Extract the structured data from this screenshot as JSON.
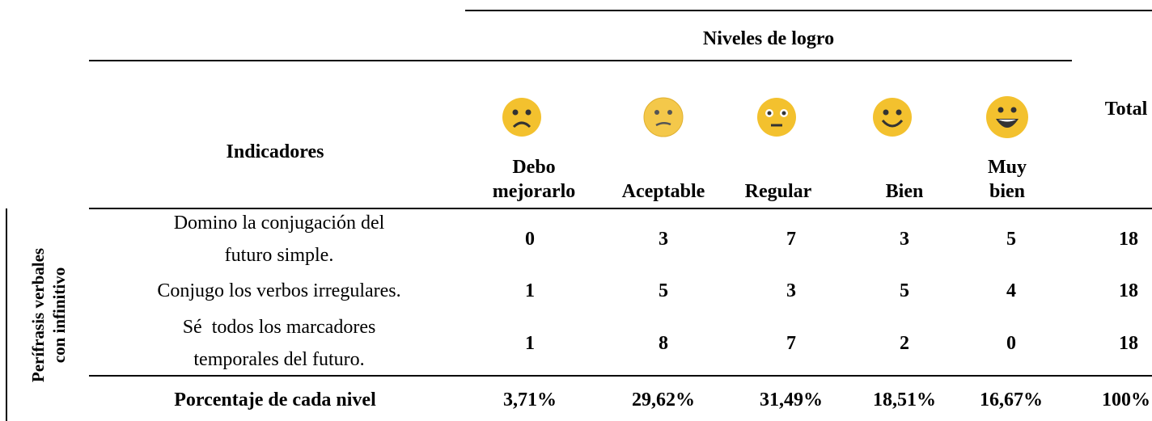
{
  "header": {
    "group": "Niveles de logro",
    "indicators": "Indicadores",
    "total": "Total",
    "levels": [
      [
        "Debo",
        "mejorarlo"
      ],
      [
        "Aceptable"
      ],
      [
        "Regular"
      ],
      [
        "Bien"
      ],
      [
        "Muy",
        "bien"
      ]
    ]
  },
  "side_label": [
    "Perífrasis verbales",
    "con infinitivo"
  ],
  "table": {
    "rows": [
      {
        "indicator": [
          "Domino la conjugación del",
          "futuro simple."
        ],
        "values": [
          0,
          3,
          7,
          3,
          5
        ],
        "total": 18
      },
      {
        "indicator": [
          "Conjugo los verbos irregulares."
        ],
        "values": [
          1,
          5,
          3,
          5,
          4
        ],
        "total": 18
      },
      {
        "indicator": [
          "Sé  todos los marcadores",
          "temporales del futuro."
        ],
        "values": [
          1,
          8,
          7,
          2,
          0
        ],
        "total": 18
      }
    ]
  },
  "footer": {
    "label": "Porcentaje de cada nivel",
    "values": [
      "3,71%",
      "29,62%",
      "31,49%",
      "18,51%",
      "16,67%"
    ],
    "total": "100%"
  }
}
